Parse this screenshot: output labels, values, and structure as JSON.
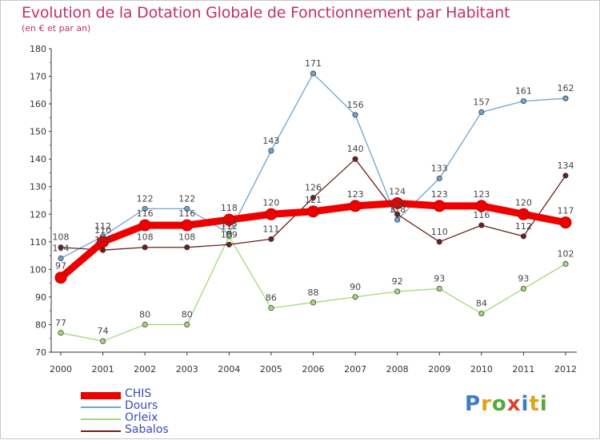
{
  "title": "Evolution de la Dotation Globale de Fonctionnement par Habitant",
  "subtitle": "(en € et par an)",
  "logo": {
    "text": "Proxiti",
    "colors": [
      "#3d7cc9",
      "#e0a21a",
      "#55a93a",
      "#d9442c",
      "#3d7cc9",
      "#e0a21a",
      "#55a93a"
    ]
  },
  "chart_data": {
    "type": "line",
    "title": "Evolution de la Dotation Globale de Fonctionnement par Habitant",
    "subtitle": "(en € et par an)",
    "x": [
      "2000",
      "2001",
      "2002",
      "2003",
      "2004",
      "2005",
      "2006",
      "2007",
      "2008",
      "2009",
      "2010",
      "2011",
      "2012"
    ],
    "ylim": [
      70,
      180
    ],
    "yticks": [
      70,
      80,
      90,
      100,
      110,
      120,
      130,
      140,
      150,
      160,
      170,
      180
    ],
    "grid": false,
    "legend": "bottom-left",
    "series": [
      {
        "name": "CHIS",
        "color": "#ee0000",
        "emphasis": true,
        "values": [
          97,
          110,
          116,
          116,
          118,
          120,
          121,
          123,
          124,
          123,
          123,
          120,
          117
        ]
      },
      {
        "name": "Dours",
        "color": "#6fa3cf",
        "values": [
          104,
          112,
          122,
          122,
          113,
          143,
          171,
          156,
          118,
          133,
          157,
          161,
          162
        ]
      },
      {
        "name": "Orleix",
        "color": "#a4d77a",
        "values": [
          77,
          74,
          80,
          80,
          112,
          86,
          88,
          90,
          92,
          93,
          84,
          93,
          102
        ]
      },
      {
        "name": "Sabalos",
        "color": "#6b1f1f",
        "values": [
          108,
          107,
          108,
          108,
          109,
          111,
          126,
          140,
          120,
          110,
          116,
          112,
          134
        ]
      }
    ]
  }
}
